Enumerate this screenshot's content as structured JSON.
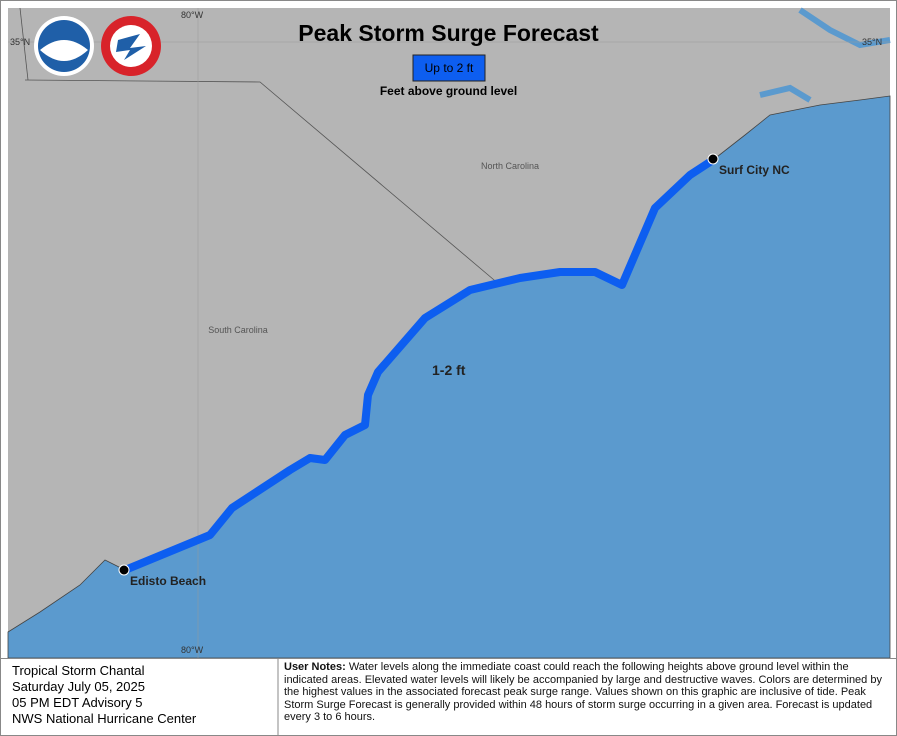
{
  "map": {
    "title": "Peak Storm Surge Forecast",
    "legend": {
      "label": "Up to 2 ft",
      "caption": "Feet above ground level"
    },
    "grid_labels": {
      "top_lon": "80°W",
      "left_lat": "35°N",
      "right_lat": "35°N",
      "bottom_lon": "80°W"
    },
    "regions": [
      "North Carolina",
      "South Carolina"
    ],
    "surge_label": "1-2 ft",
    "locations": [
      "Surf City NC",
      "Edisto Beach"
    ]
  },
  "info": {
    "lines": [
      "Tropical Storm Chantal",
      "Saturday July 05, 2025",
      "05 PM EDT Advisory 5",
      "NWS National Hurricane Center"
    ]
  },
  "notes": {
    "label": "User Notes:",
    "text": "Water levels along the immediate coast could reach the following heights above ground level within the indicated areas. Elevated water levels will likely be accompanied by large and destructive waves. Colors are determined by the highest values in the associated forecast peak surge range. Values shown on this graphic are inclusive of tide.  Peak Storm Surge Forecast is generally provided within 48 hours of storm surge occurring in a given area.  Forecast is updated every 3 to 6 hours."
  }
}
